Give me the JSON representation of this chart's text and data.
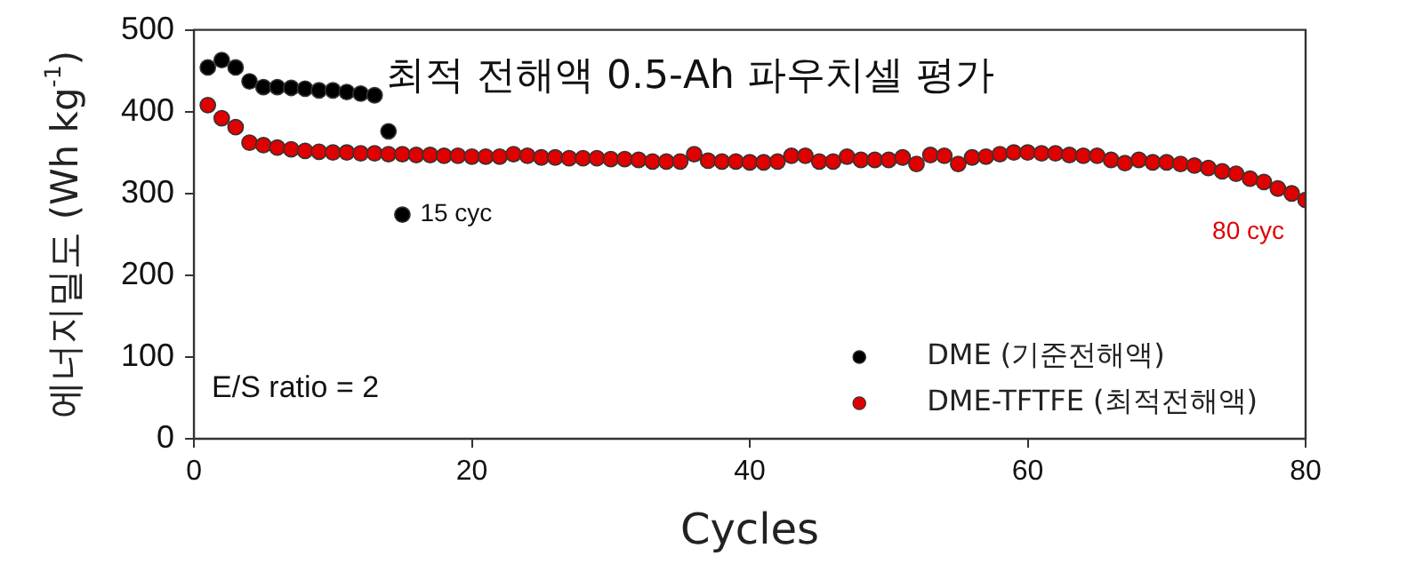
{
  "chart_data": {
    "type": "scatter",
    "title": "최적 전해액 0.5-Ah 파우치셀 평가",
    "xlabel": "Cycles",
    "ylabel": "에너지밀도 (Wh kg$^{-1}$)",
    "x": [
      1,
      2,
      3,
      4,
      5,
      6,
      7,
      8,
      9,
      10,
      11,
      12,
      13,
      14,
      15,
      16,
      17,
      18,
      19,
      20,
      21,
      22,
      23,
      24,
      25,
      26,
      27,
      28,
      29,
      30,
      31,
      32,
      33,
      34,
      35,
      36,
      37,
      38,
      39,
      40,
      41,
      42,
      43,
      44,
      45,
      46,
      47,
      48,
      49,
      50,
      51,
      52,
      53,
      54,
      55,
      56,
      57,
      58,
      59,
      60,
      61,
      62,
      63,
      64,
      65,
      66,
      67,
      68,
      69,
      70,
      71,
      72,
      73,
      74,
      75,
      76,
      77,
      78,
      79,
      80
    ],
    "series": [
      {
        "name": "DME (기준전해액)",
        "color": "#000000",
        "x": [
          1,
          2,
          3,
          4,
          5,
          6,
          7,
          8,
          9,
          10,
          11,
          12,
          13,
          14,
          15
        ],
        "values": [
          454,
          463,
          454,
          437,
          430,
          430,
          429,
          428,
          426,
          426,
          424,
          422,
          420,
          376,
          274
        ]
      },
      {
        "name": "DME-TFTFE (최적전해액)",
        "color": "#e00000",
        "values": [
          408,
          392,
          381,
          362,
          359,
          356,
          354,
          352,
          351,
          350,
          350,
          349,
          349,
          348,
          348,
          347,
          347,
          346,
          346,
          345,
          345,
          345,
          348,
          346,
          344,
          344,
          343,
          343,
          343,
          342,
          342,
          341,
          339,
          339,
          339,
          348,
          340,
          339,
          339,
          338,
          338,
          339,
          346,
          346,
          339,
          339,
          345,
          341,
          341,
          341,
          344,
          336,
          347,
          346,
          336,
          344,
          345,
          348,
          350,
          350,
          349,
          349,
          347,
          346,
          346,
          341,
          337,
          341,
          338,
          338,
          336,
          334,
          331,
          327,
          324,
          318,
          314,
          306,
          300,
          292
        ]
      }
    ],
    "xlim": [
      0,
      80
    ],
    "xticks": [
      0,
      20,
      40,
      60,
      80
    ],
    "ylim": [
      0,
      500
    ],
    "yticks": [
      0,
      100,
      200,
      300,
      400,
      500
    ],
    "grid": false,
    "legend": "bottom right",
    "marker": "circle",
    "annotations": [
      {
        "text": "15 cyc",
        "x": 15,
        "y": 274
      },
      {
        "text": "80 cyc",
        "x": 80,
        "y": 292
      },
      "E/S ratio = 2"
    ]
  }
}
